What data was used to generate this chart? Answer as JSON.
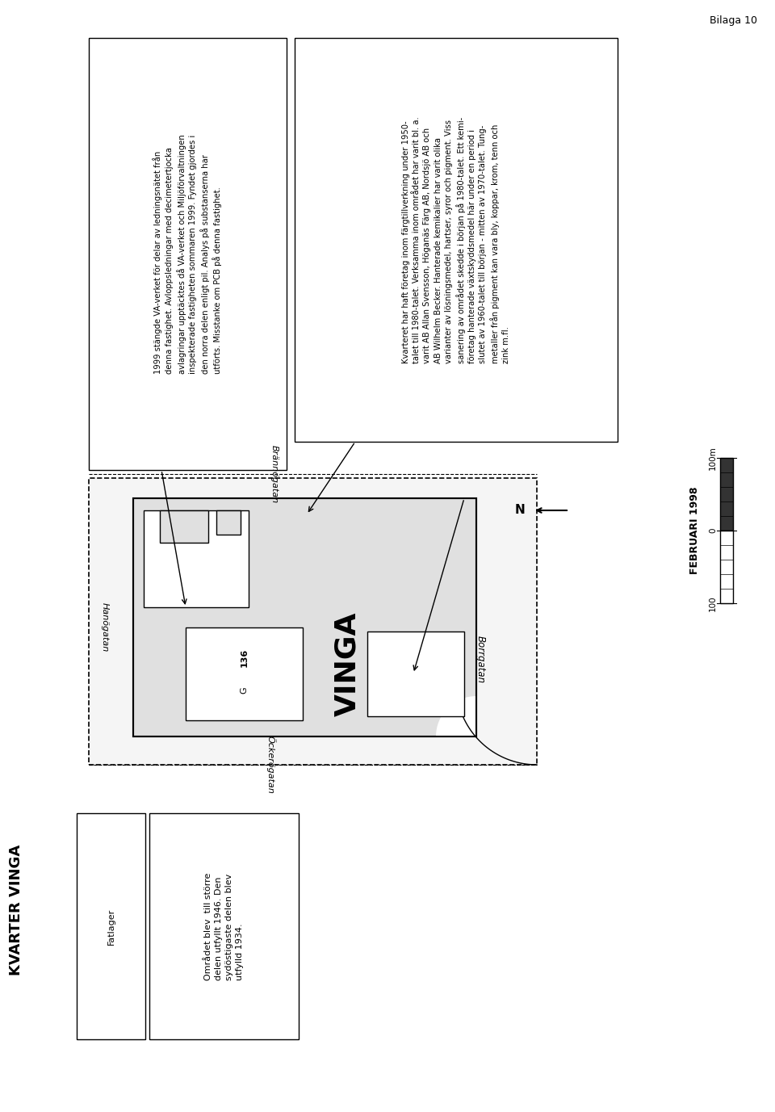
{
  "title": "KVARTER VINGA",
  "bilaga": "Bilaga 10",
  "date": "FEBRUARI 1998",
  "text_box_left": "1999 stängde VA-verket för delar av ledningsnätet från\ndenna fastighet. Avloppsledningar med decimetertjocka\navlagringar upptäcktes då VA-verket och Miljöförvaltningen\ninspekterade fastigheten sommaren 1999. Fyndet gjordes i\nden norra delen enligt pil. Analys på substanserna har\nutförts. Misstanke om PCB på denna fastighet.",
  "text_box_right": "Kvarteret har haft företag inom färgtillverkning under 1950-\ntalet till 1980-talet. Verksamma inom området har varit bl. a.\nvarit AB Allan Svensson, Höganäs Färg AB, Nordsjö AB och\nAB Wilhelm Becker. Hanterade kemikalier har varit olika\nvarianter av lösningsmedel, hartser, syror och pigment. Viss\nsanering av området skedde i början på 1980-talet. Ett kemi-\nföretag hanterade växtskyddsmedel här under en period i\nslutet av 1960-talet till början - mitten av 1970-talet. Tung-\nmetaller från pigment kan vara bly, koppar, krom, tenn och\nzink m.fl.",
  "legend_fatlager": "Fatlager",
  "legend_text": "Området blev  till större\ndelen utfyllt 1946. Den\nsydöstigaste delen blev\nutfylld 1934.",
  "bg_color": "#ffffff",
  "text_color": "#000000"
}
